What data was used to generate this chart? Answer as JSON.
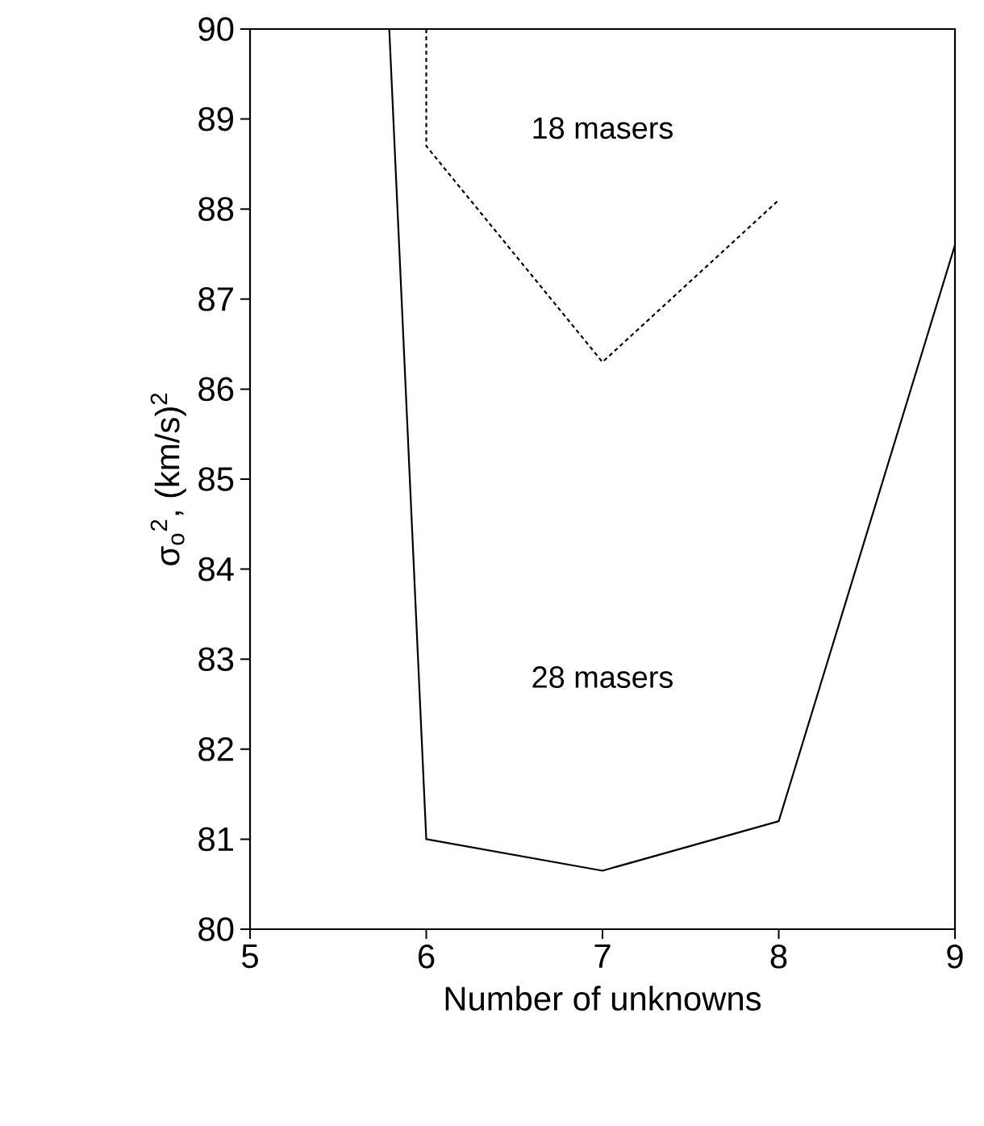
{
  "chart_data": {
    "type": "line",
    "xlabel": "Number of unknowns",
    "ylabel": "σ$_{o}$$^{2}$, (km/s)$^{2}$",
    "xlim": [
      5,
      9
    ],
    "ylim": [
      80,
      90
    ],
    "xticks": [
      5,
      6,
      7,
      8,
      9
    ],
    "yticks": [
      80,
      81,
      82,
      83,
      84,
      85,
      86,
      87,
      88,
      89,
      90
    ],
    "series": [
      {
        "color": "#000000",
        "line_style": "solid",
        "x": [
          5.79,
          6,
          7,
          8,
          9
        ],
        "values": [
          90,
          81.0,
          80.65,
          81.2,
          87.6
        ]
      },
      {
        "color": "#000000",
        "line_style": "dotted",
        "x": [
          6,
          6,
          7,
          8
        ],
        "values": [
          90,
          88.7,
          86.3,
          88.1
        ]
      }
    ],
    "annotations": [
      "18 masers",
      "28 masers"
    ],
    "grid": false
  }
}
